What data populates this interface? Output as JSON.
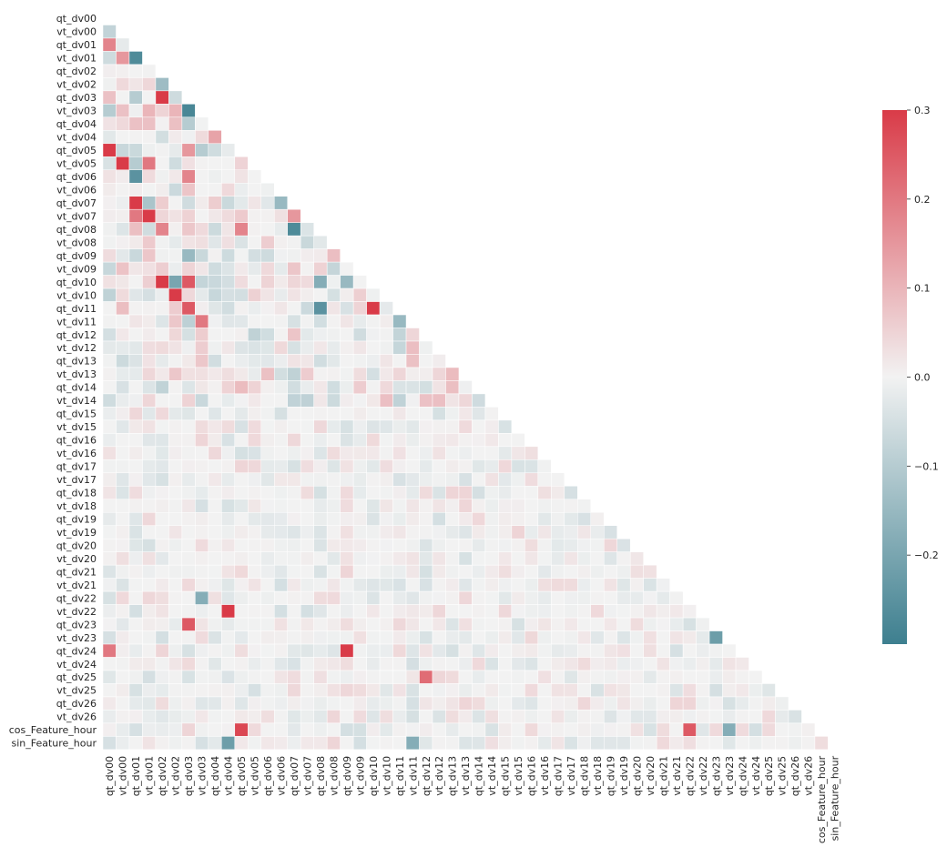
{
  "chart_data": {
    "type": "heatmap",
    "title": "",
    "xlabel": "",
    "ylabel": "",
    "mask": "upper-triangle",
    "labels": [
      "qt_dv00",
      "vt_dv00",
      "qt_dv01",
      "vt_dv01",
      "qt_dv02",
      "vt_dv02",
      "qt_dv03",
      "vt_dv03",
      "qt_dv04",
      "vt_dv04",
      "qt_dv05",
      "vt_dv05",
      "qt_dv06",
      "vt_dv06",
      "qt_dv07",
      "vt_dv07",
      "qt_dv08",
      "vt_dv08",
      "qt_dv09",
      "vt_dv09",
      "qt_dv10",
      "vt_dv10",
      "qt_dv11",
      "vt_dv11",
      "qt_dv12",
      "vt_dv12",
      "qt_dv13",
      "vt_dv13",
      "qt_dv14",
      "vt_dv14",
      "qt_dv15",
      "vt_dv15",
      "qt_dv16",
      "vt_dv16",
      "qt_dv17",
      "vt_dv17",
      "qt_dv18",
      "vt_dv18",
      "qt_dv19",
      "vt_dv19",
      "qt_dv20",
      "vt_dv20",
      "qt_dv21",
      "vt_dv21",
      "qt_dv22",
      "vt_dv22",
      "qt_dv23",
      "vt_dv23",
      "qt_dv24",
      "vt_dv24",
      "qt_dv25",
      "vt_dv25",
      "qt_dv26",
      "vt_dv26",
      "cos_Feature_hour",
      "sin_Feature_hour"
    ],
    "vmin": -0.3,
    "vmax": 0.3,
    "colormap": {
      "low": "#3d7f8f",
      "mid": "#f2f2f2",
      "high": "#d93b48"
    },
    "colorbar_ticks": [
      {
        "value": 0.3,
        "label": "0.3"
      },
      {
        "value": 0.2,
        "label": "0.2"
      },
      {
        "value": 0.1,
        "label": "0.1"
      },
      {
        "value": 0.0,
        "label": "0.0"
      },
      {
        "value": -0.1,
        "label": "−0.1"
      },
      {
        "value": -0.2,
        "label": "−0.2"
      }
    ],
    "notable_values": [
      {
        "row": "vt_dv00",
        "col": "qt_dv00",
        "value": -0.08
      },
      {
        "row": "qt_dv01",
        "col": "qt_dv00",
        "value": 0.18
      },
      {
        "row": "qt_dv01",
        "col": "vt_dv00",
        "value": -0.02
      },
      {
        "row": "vt_dv01",
        "col": "qt_dv00",
        "value": -0.06
      },
      {
        "row": "vt_dv01",
        "col": "vt_dv00",
        "value": 0.15
      },
      {
        "row": "vt_dv01",
        "col": "qt_dv01",
        "value": -0.27
      },
      {
        "row": "vt_dv02",
        "col": "qt_dv02",
        "value": -0.14
      },
      {
        "row": "qt_dv03",
        "col": "qt_dv00",
        "value": 0.08
      },
      {
        "row": "qt_dv03",
        "col": "qt_dv01",
        "value": -0.1
      },
      {
        "row": "qt_dv03",
        "col": "qt_dv02",
        "value": 0.3
      },
      {
        "row": "qt_dv03",
        "col": "vt_dv02",
        "value": -0.06
      },
      {
        "row": "vt_dv03",
        "col": "qt_dv00",
        "value": -0.1
      },
      {
        "row": "vt_dv03",
        "col": "vt_dv00",
        "value": 0.08
      },
      {
        "row": "vt_dv03",
        "col": "vt_dv01",
        "value": 0.1
      },
      {
        "row": "vt_dv03",
        "col": "vt_dv02",
        "value": 0.1
      },
      {
        "row": "vt_dv03",
        "col": "qt_dv03",
        "value": -0.28
      },
      {
        "row": "qt_dv04",
        "col": "qt_dv01",
        "value": 0.08
      },
      {
        "row": "qt_dv04",
        "col": "qt_dv03",
        "value": -0.1
      },
      {
        "row": "vt_dv04",
        "col": "qt_dv04",
        "value": 0.13
      },
      {
        "row": "qt_dv05",
        "col": "qt_dv00",
        "value": 0.3
      },
      {
        "row": "qt_dv05",
        "col": "qt_dv03",
        "value": 0.15
      },
      {
        "row": "qt_dv05",
        "col": "vt_dv03",
        "value": -0.1
      },
      {
        "row": "vt_dv05",
        "col": "vt_dv00",
        "value": 0.3
      },
      {
        "row": "vt_dv05",
        "col": "qt_dv01",
        "value": -0.1
      },
      {
        "row": "vt_dv05",
        "col": "vt_dv01",
        "value": 0.2
      },
      {
        "row": "qt_dv06",
        "col": "qt_dv01",
        "value": -0.25
      },
      {
        "row": "qt_dv06",
        "col": "qt_dv03",
        "value": 0.18
      },
      {
        "row": "qt_dv07",
        "col": "qt_dv01",
        "value": 0.3
      },
      {
        "row": "qt_dv07",
        "col": "vt_dv01",
        "value": -0.12
      },
      {
        "row": "qt_dv07",
        "col": "vt_dv06",
        "value": -0.15
      },
      {
        "row": "vt_dv07",
        "col": "vt_dv01",
        "value": 0.3
      },
      {
        "row": "vt_dv07",
        "col": "qt_dv01",
        "value": 0.2
      },
      {
        "row": "vt_dv07",
        "col": "qt_dv07",
        "value": 0.15
      },
      {
        "row": "qt_dv08",
        "col": "qt_dv07",
        "value": -0.27
      },
      {
        "row": "qt_dv08",
        "col": "qt_dv02",
        "value": 0.18
      },
      {
        "row": "qt_dv08",
        "col": "qt_dv05",
        "value": 0.18
      },
      {
        "row": "qt_dv09",
        "col": "qt_dv03",
        "value": -0.15
      },
      {
        "row": "qt_dv10",
        "col": "qt_dv02",
        "value": 0.3
      },
      {
        "row": "qt_dv10",
        "col": "vt_dv02",
        "value": -0.2
      },
      {
        "row": "qt_dv10",
        "col": "qt_dv03",
        "value": 0.25
      },
      {
        "row": "qt_dv10",
        "col": "qt_dv08",
        "value": -0.18
      },
      {
        "row": "qt_dv10",
        "col": "qt_dv09",
        "value": -0.15
      },
      {
        "row": "vt_dv10",
        "col": "vt_dv02",
        "value": 0.3
      },
      {
        "row": "qt_dv11",
        "col": "qt_dv03",
        "value": 0.25
      },
      {
        "row": "qt_dv11",
        "col": "qt_dv08",
        "value": -0.25
      },
      {
        "row": "qt_dv11",
        "col": "qt_dv10",
        "value": 0.3
      },
      {
        "row": "vt_dv11",
        "col": "vt_dv03",
        "value": 0.2
      },
      {
        "row": "vt_dv11",
        "col": "qt_dv11",
        "value": -0.15
      },
      {
        "row": "qt_dv22",
        "col": "vt_dv03",
        "value": -0.18
      },
      {
        "row": "vt_dv22",
        "col": "vt_dv04",
        "value": 0.3
      },
      {
        "row": "qt_dv23",
        "col": "qt_dv03",
        "value": 0.25
      },
      {
        "row": "vt_dv23",
        "col": "qt_dv23",
        "value": -0.22
      },
      {
        "row": "qt_dv24",
        "col": "qt_dv09",
        "value": 0.3
      },
      {
        "row": "qt_dv24",
        "col": "qt_dv00",
        "value": 0.2
      },
      {
        "row": "qt_dv25",
        "col": "qt_dv12",
        "value": 0.22
      },
      {
        "row": "cos_Feature_hour",
        "col": "qt_dv05",
        "value": 0.28
      },
      {
        "row": "cos_Feature_hour",
        "col": "qt_dv22",
        "value": 0.25
      },
      {
        "row": "cos_Feature_hour",
        "col": "vt_dv23",
        "value": -0.18
      },
      {
        "row": "sin_Feature_hour",
        "col": "vt_dv04",
        "value": -0.22
      },
      {
        "row": "sin_Feature_hour",
        "col": "vt_dv11",
        "value": -0.18
      }
    ]
  }
}
